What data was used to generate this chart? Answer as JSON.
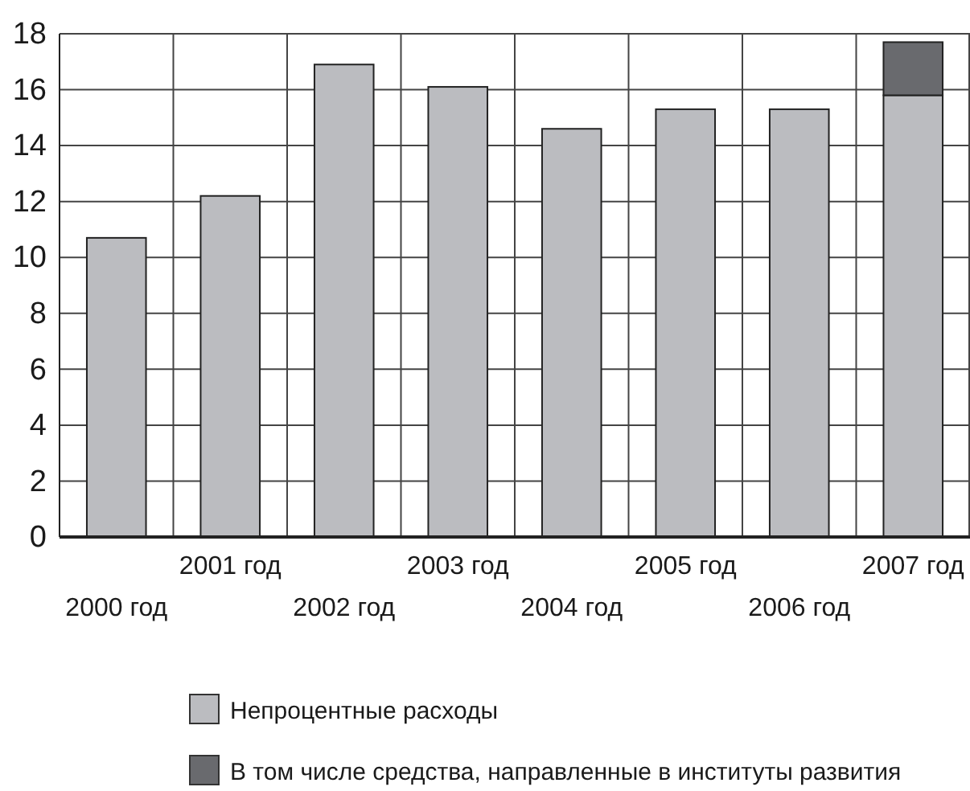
{
  "chart_data": {
    "type": "bar",
    "categories": [
      "2000 год",
      "2001 год",
      "2002 год",
      "2003 год",
      "2004 год",
      "2005 год",
      "2006 год",
      "2007 год"
    ],
    "series": [
      {
        "name": "Непроцентные расходы",
        "color": "#bbbcc0",
        "values": [
          10.7,
          12.2,
          16.9,
          16.1,
          14.6,
          15.3,
          15.3,
          15.8
        ]
      },
      {
        "name": "В том числе средства, направленные в институты развития",
        "color": "#696a6e",
        "values": [
          null,
          null,
          null,
          null,
          null,
          null,
          null,
          1.9
        ]
      }
    ],
    "stacked": true,
    "ylim": [
      0,
      18
    ],
    "yticks": [
      0,
      2,
      4,
      6,
      8,
      10,
      12,
      14,
      16,
      18
    ],
    "grid": true,
    "legend": "bottom"
  }
}
